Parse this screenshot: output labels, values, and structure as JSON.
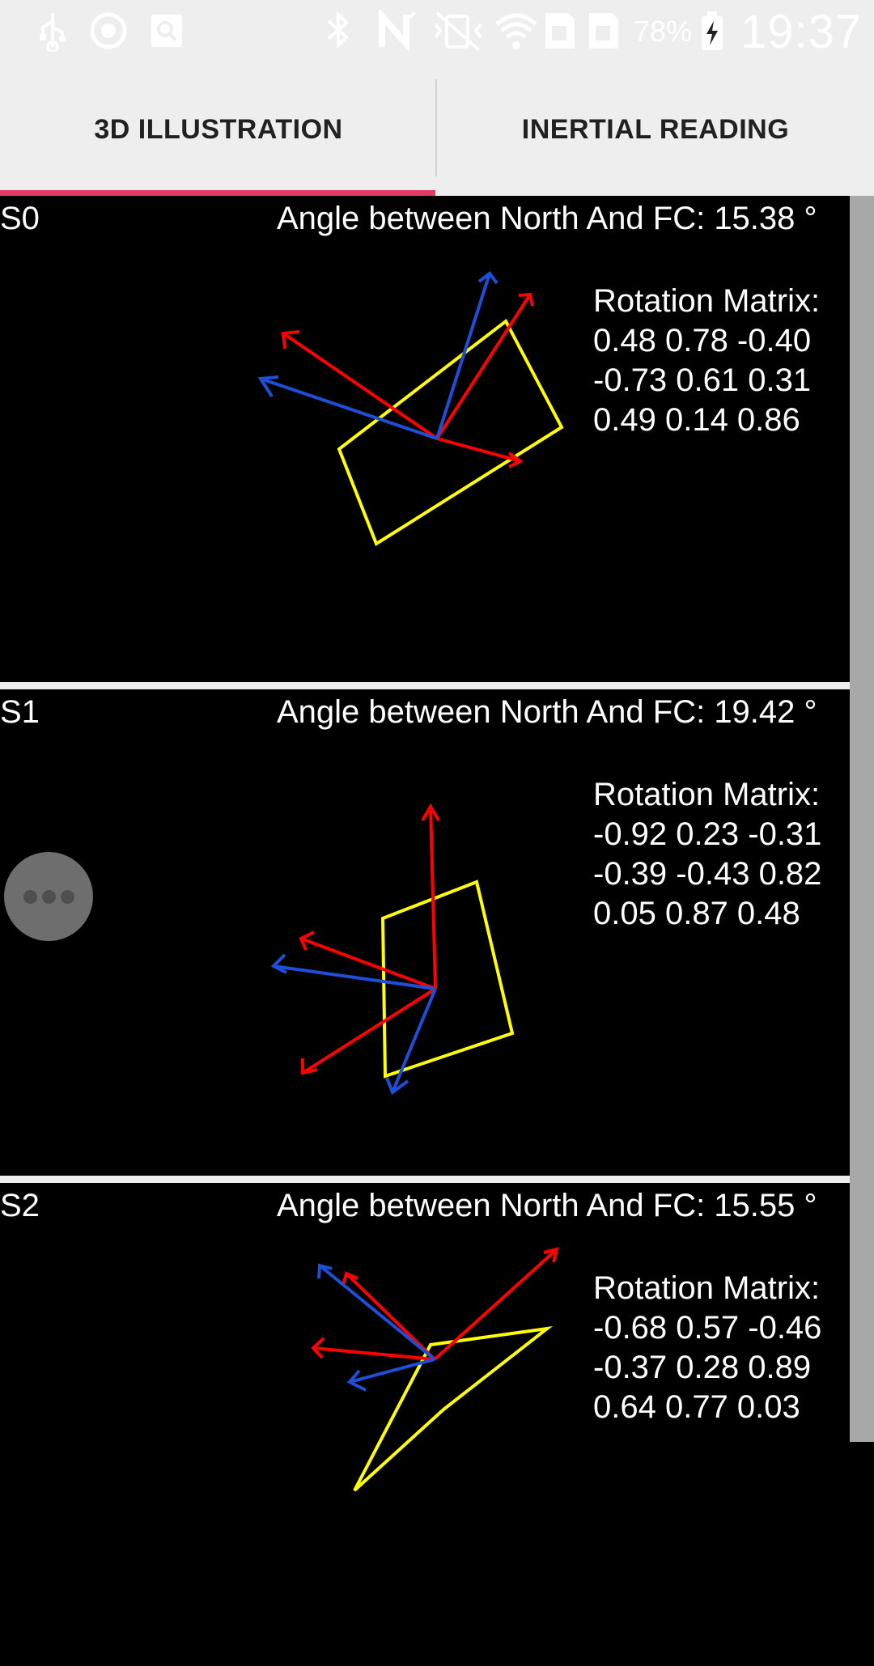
{
  "status_bar": {
    "battery_percent": "78%",
    "time": "19:37",
    "icons": [
      "usb-icon",
      "sync-icon",
      "screenshot-icon",
      "bluetooth-icon",
      "nfc-icon",
      "vibrate-icon",
      "wifi-icon",
      "sim1-icon",
      "sim2-icon",
      "battery-charging-icon"
    ]
  },
  "tabs": [
    {
      "label": "3D ILLUSTRATION",
      "selected": true
    },
    {
      "label": "INERTIAL READING",
      "selected": false
    }
  ],
  "accent_color": "#e53a64",
  "sensors": [
    {
      "id": "S0",
      "angle": "Angle between North And FC: 15.38 °",
      "matrix_title": "Rotation Matrix:",
      "matrix_rows": [
        "0.48 0.78 -0.40",
        "-0.73 0.61 0.31",
        "0.49 0.14 0.86"
      ]
    },
    {
      "id": "S1",
      "angle": "Angle between North And FC: 19.42 °",
      "matrix_title": "Rotation Matrix:",
      "matrix_rows": [
        "-0.92 0.23 -0.31",
        "-0.39 -0.43 0.82",
        "0.05 0.87 0.48"
      ]
    },
    {
      "id": "S2",
      "angle": "Angle between North And FC: 15.55 °",
      "matrix_title": "Rotation Matrix:",
      "matrix_rows": [
        "-0.68 0.57 -0.46",
        "-0.37 0.28 0.89",
        "0.64 0.77 0.03"
      ]
    }
  ],
  "colors": {
    "rectangle": "#ffff00",
    "red_axis": "#ff0000",
    "blue_axis": "#1e4fd8"
  }
}
